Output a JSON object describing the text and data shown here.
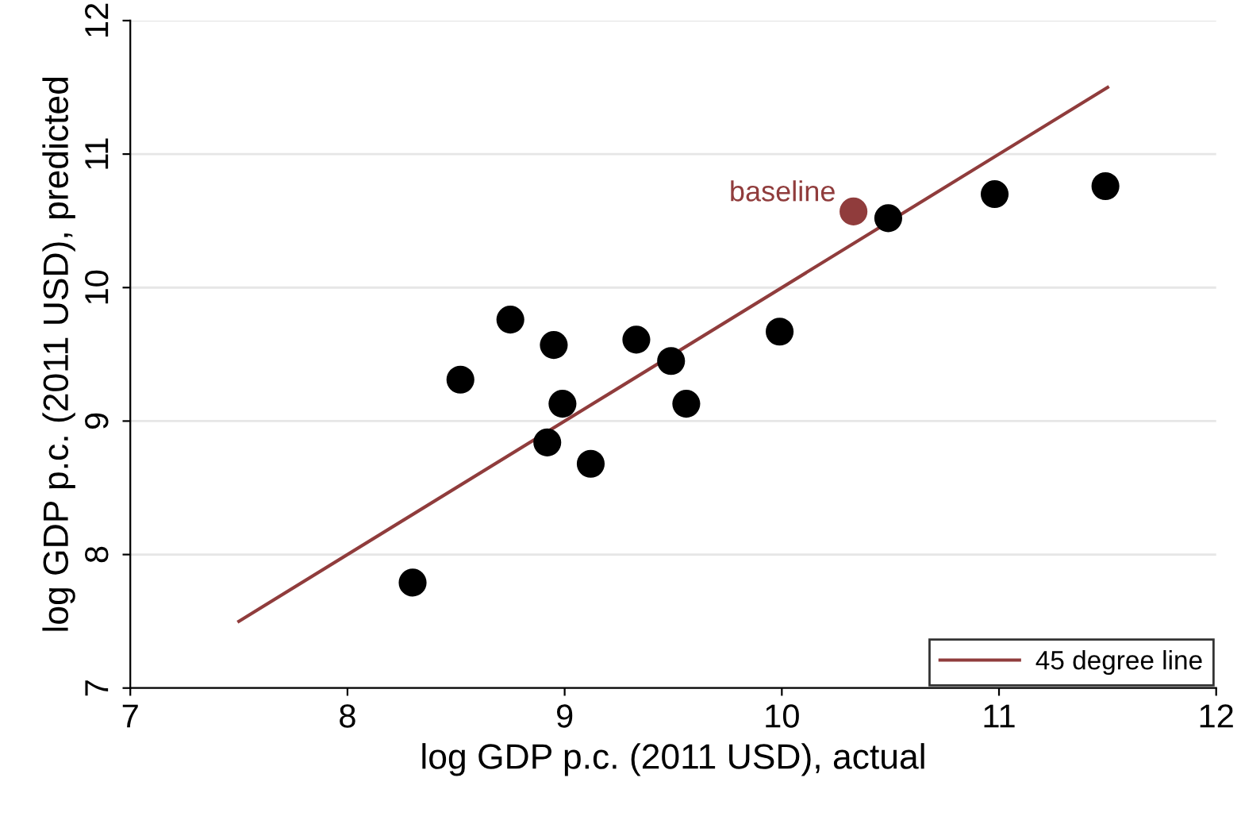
{
  "chart_data": {
    "type": "scatter",
    "xlabel": "log GDP p.c. (2011 USD), actual",
    "ylabel": "log GDP p.c. (2011 USD), predicted",
    "xlim": [
      7,
      12
    ],
    "ylim": [
      7,
      12
    ],
    "xticks": [
      7,
      8,
      9,
      10,
      11,
      12
    ],
    "yticks": [
      7,
      8,
      9,
      10,
      11,
      12
    ],
    "grid": "y",
    "legend": "bottom right",
    "series": [
      {
        "marker": "circle",
        "color": "#000000",
        "x": [
          8.3,
          8.52,
          8.75,
          8.95,
          8.99,
          8.92,
          9.12,
          9.33,
          9.49,
          9.56,
          9.99,
          10.49,
          10.98,
          11.49
        ],
        "values": [
          7.79,
          9.31,
          9.76,
          9.57,
          9.13,
          8.84,
          8.68,
          9.61,
          9.45,
          9.13,
          9.67,
          10.52,
          10.7,
          10.76
        ]
      },
      {
        "marker": "circle",
        "name": "baseline",
        "color": "#903c3c",
        "x": [
          10.33
        ],
        "values": [
          10.57
        ]
      },
      {
        "type": "line",
        "marker": "none",
        "name": "45 degree line",
        "color": "#903c3c",
        "x": [
          7.5,
          11.5
        ],
        "values": [
          7.5,
          11.5
        ]
      }
    ]
  }
}
